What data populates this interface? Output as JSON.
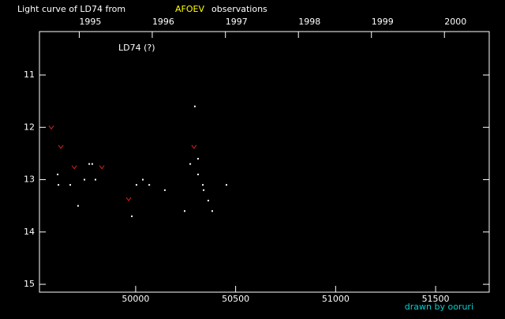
{
  "chart_data": {
    "type": "scatter",
    "title": "Light curve of LD74 from",
    "title_highlight": "AFOEV",
    "title_highlight_color": "#ffff00",
    "title_tail": "observations",
    "annotation": "LD74 (?)",
    "credit": "drawn by ooruri",
    "credit_color": "#00d0d0",
    "xlim": [
      49519,
      51768
    ],
    "xticks": [
      50000,
      50500,
      51000,
      51500
    ],
    "x2ticks": [
      {
        "value": 49718,
        "label": "1995"
      },
      {
        "value": 50083,
        "label": "1996"
      },
      {
        "value": 50449,
        "label": "1997"
      },
      {
        "value": 50814,
        "label": "1998"
      },
      {
        "value": 51179,
        "label": "1999"
      },
      {
        "value": 51544,
        "label": "2000"
      }
    ],
    "ylim": [
      15.15,
      10.17
    ],
    "yticks": [
      11,
      12,
      13,
      14,
      15
    ],
    "series": [
      {
        "color": "#ffffff",
        "marker": "dot",
        "x": [
          49610,
          49614,
          49673,
          49712,
          49744,
          49768,
          49783,
          49799,
          49981,
          50004,
          50036,
          50068,
          50146,
          50245,
          50273,
          50296,
          50312,
          50312,
          50336,
          50340,
          50363,
          50383,
          50454
        ],
        "values": [
          12.9,
          13.1,
          13.1,
          13.5,
          13.0,
          12.7,
          12.7,
          13.0,
          13.7,
          13.1,
          13.0,
          13.1,
          13.2,
          13.6,
          12.7,
          11.6,
          12.6,
          12.9,
          13.1,
          13.2,
          13.4,
          13.6,
          13.1
        ]
      },
      {
        "color": "#e02020",
        "marker": "v",
        "x": [
          49578,
          49626,
          49693,
          49831,
          49965,
          50292
        ],
        "values": [
          12.0,
          12.37,
          12.76,
          12.76,
          13.37,
          12.37
        ]
      }
    ]
  }
}
